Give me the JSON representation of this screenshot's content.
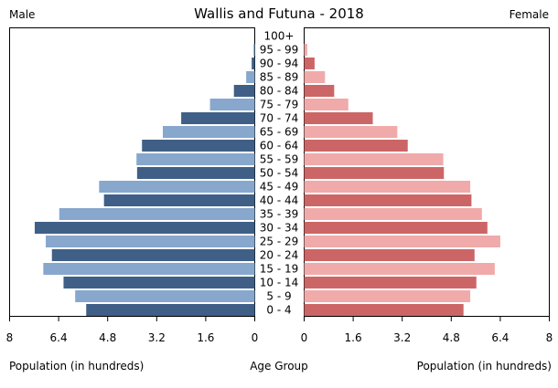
{
  "chart_data": {
    "type": "bar",
    "subtype": "population-pyramid",
    "title": "Wallis and Futuna - 2018",
    "left_label": "Male",
    "right_label": "Female",
    "xlabel_left": "Population (in hundreds)",
    "xlabel_center": "Age Group",
    "xlabel_right": "Population (in hundreds)",
    "xlim": [
      0,
      8
    ],
    "ticks": [
      0,
      1.6,
      3.2,
      4.8,
      6.4,
      8
    ],
    "tick_labels": [
      "0",
      "1.6",
      "3.2",
      "4.8",
      "6.4",
      "8"
    ],
    "categories": [
      "0 - 4",
      "5 - 9",
      "10 - 14",
      "15 - 19",
      "20 - 24",
      "25 - 29",
      "30 - 34",
      "35 - 39",
      "40 - 44",
      "45 - 49",
      "50 - 54",
      "55 - 59",
      "60 - 64",
      "65 - 69",
      "70 - 74",
      "75 - 79",
      "80 - 84",
      "85 - 89",
      "90 - 94",
      "95 - 99",
      "100+"
    ],
    "series": [
      {
        "side": "left",
        "colors": [
          "#3f5f87",
          "#87a7cd"
        ],
        "values": [
          5.5,
          5.86,
          6.24,
          6.9,
          6.62,
          6.82,
          7.18,
          6.38,
          4.92,
          5.08,
          3.84,
          3.86,
          3.68,
          3.0,
          2.4,
          1.46,
          0.68,
          0.28,
          0.1,
          0.04,
          0.0
        ]
      },
      {
        "side": "right",
        "colors": [
          "#cc6666",
          "#f0aaaa"
        ],
        "values": [
          5.2,
          5.42,
          5.62,
          6.22,
          5.56,
          6.4,
          5.98,
          5.8,
          5.46,
          5.42,
          4.56,
          4.54,
          3.38,
          3.04,
          2.24,
          1.44,
          0.98,
          0.68,
          0.34,
          0.1,
          0.0
        ]
      }
    ]
  }
}
